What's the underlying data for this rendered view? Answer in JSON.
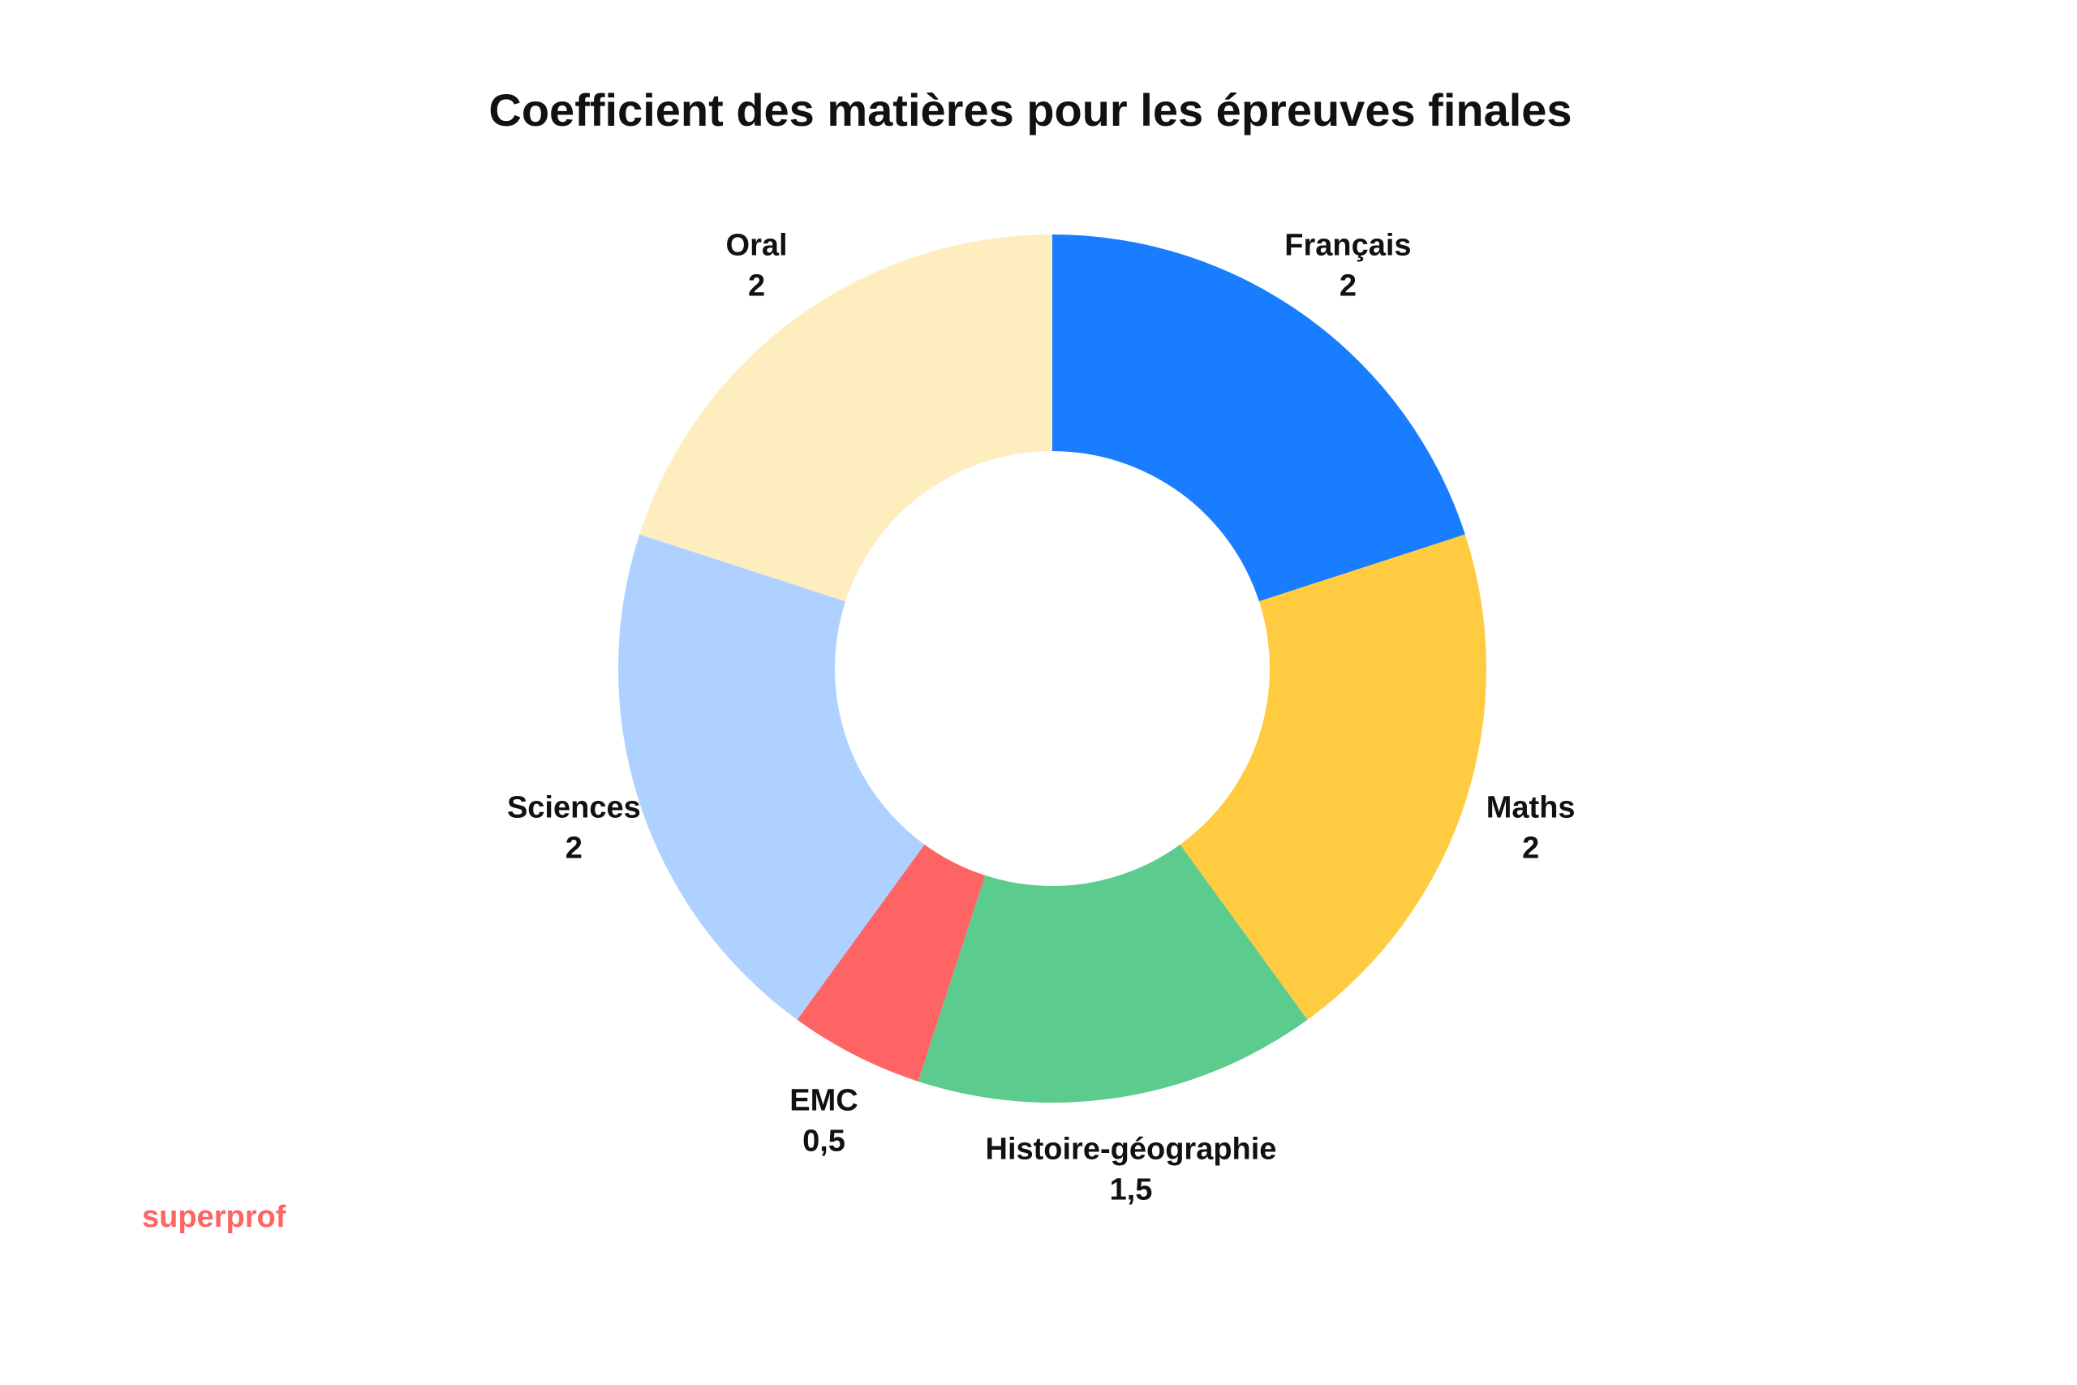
{
  "chart_data": {
    "type": "pie",
    "title": "Coefficient des matières pour les épreuves finales",
    "categories": [
      "Français",
      "Maths",
      "Histoire-géographie",
      "EMC",
      "Sciences",
      "Oral"
    ],
    "values": [
      2,
      2,
      1.5,
      0.5,
      2,
      2
    ],
    "value_labels": [
      "2",
      "2",
      "1,5",
      "0,5",
      "2",
      "2"
    ],
    "colors": [
      "#187DFF",
      "#FFCC41",
      "#5BCB8E",
      "#FF6464",
      "#AED1FF",
      "#FEEDBE"
    ],
    "donut": true,
    "start_angle": "12 o'clock",
    "direction": "clockwise",
    "legend": "none"
  },
  "brand": {
    "name": "superprof",
    "color": "#FF6464"
  }
}
